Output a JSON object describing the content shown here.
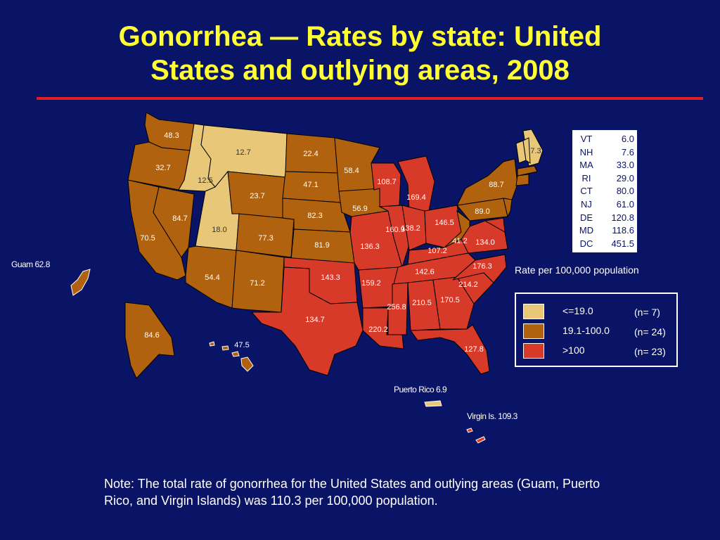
{
  "title": {
    "line1": "Gonorrhea — Rates by state: United",
    "line2": "States and outlying areas, 2008"
  },
  "colors": {
    "background": "#0a1466",
    "title": "#ffff33",
    "rule": "#e01c24",
    "low": "#e8c878",
    "mid": "#b0620e",
    "high": "#d83a2a",
    "border": "#000000"
  },
  "states": [
    {
      "id": "WA",
      "rate": "48.3",
      "category": "mid"
    },
    {
      "id": "OR",
      "rate": "32.7",
      "category": "mid"
    },
    {
      "id": "CA",
      "rate": "70.5",
      "category": "mid"
    },
    {
      "id": "NV",
      "rate": "84.7",
      "category": "mid"
    },
    {
      "id": "ID",
      "rate": "12.5",
      "category": "low"
    },
    {
      "id": "MT",
      "rate": "12.7",
      "category": "low"
    },
    {
      "id": "WY",
      "rate": "23.7",
      "category": "mid"
    },
    {
      "id": "UT",
      "rate": "18.0",
      "category": "low"
    },
    {
      "id": "CO",
      "rate": "77.3",
      "category": "mid"
    },
    {
      "id": "AZ",
      "rate": "54.4",
      "category": "mid"
    },
    {
      "id": "NM",
      "rate": "71.2",
      "category": "mid"
    },
    {
      "id": "ND",
      "rate": "22.4",
      "category": "mid"
    },
    {
      "id": "SD",
      "rate": "47.1",
      "category": "mid"
    },
    {
      "id": "NE",
      "rate": "82.3",
      "category": "mid"
    },
    {
      "id": "KS",
      "rate": "81.9",
      "category": "mid"
    },
    {
      "id": "OK",
      "rate": "143.3",
      "category": "high"
    },
    {
      "id": "TX",
      "rate": "134.7",
      "category": "high"
    },
    {
      "id": "MN",
      "rate": "58.4",
      "category": "mid"
    },
    {
      "id": "IA",
      "rate": "56.9",
      "category": "mid"
    },
    {
      "id": "MO",
      "rate": "136.3",
      "category": "high"
    },
    {
      "id": "AR",
      "rate": "159.2",
      "category": "high"
    },
    {
      "id": "LA",
      "rate": "220.2",
      "category": "high"
    },
    {
      "id": "WI",
      "rate": "108.7",
      "category": "high"
    },
    {
      "id": "IL",
      "rate": "160.9",
      "category": "high"
    },
    {
      "id": "MI",
      "rate": "169.4",
      "category": "high"
    },
    {
      "id": "IN",
      "rate": "138.2",
      "category": "high"
    },
    {
      "id": "OH",
      "rate": "146.5",
      "category": "high"
    },
    {
      "id": "KY",
      "rate": "107.2",
      "category": "high"
    },
    {
      "id": "TN",
      "rate": "142.6",
      "category": "high"
    },
    {
      "id": "MS",
      "rate": "256.8",
      "category": "high"
    },
    {
      "id": "AL",
      "rate": "210.5",
      "category": "high"
    },
    {
      "id": "GA",
      "rate": "170.5",
      "category": "high"
    },
    {
      "id": "FL",
      "rate": "127.8",
      "category": "high"
    },
    {
      "id": "SC",
      "rate": "214.2",
      "category": "high"
    },
    {
      "id": "NC",
      "rate": "176.3",
      "category": "high"
    },
    {
      "id": "VA",
      "rate": "134.0",
      "category": "high"
    },
    {
      "id": "WV",
      "rate": "41.2",
      "category": "mid"
    },
    {
      "id": "PA",
      "rate": "89.0",
      "category": "mid"
    },
    {
      "id": "NY",
      "rate": "88.7",
      "category": "mid"
    },
    {
      "id": "ME",
      "rate": "7.3",
      "category": "low"
    },
    {
      "id": "AK",
      "rate": "84.6",
      "category": "mid"
    },
    {
      "id": "HI",
      "rate": "47.5",
      "category": "mid"
    }
  ],
  "small_states": [
    {
      "abbr": "VT",
      "rate": "6.0"
    },
    {
      "abbr": "NH",
      "rate": "7.6"
    },
    {
      "abbr": "MA",
      "rate": "33.0"
    },
    {
      "abbr": "RI",
      "rate": "29.0"
    },
    {
      "abbr": "CT",
      "rate": "80.0"
    },
    {
      "abbr": "NJ",
      "rate": "61.0"
    },
    {
      "abbr": "DE",
      "rate": "120.8"
    },
    {
      "abbr": "MD",
      "rate": "118.6"
    },
    {
      "abbr": "DC",
      "rate": "451.5"
    }
  ],
  "outlying": {
    "guam": "Guam 62.8",
    "puerto_rico": "Puerto Rico 6.9",
    "virgin_islands": "Virgin Is. 109.3"
  },
  "legend": {
    "caption": "Rate per 100,000 population",
    "items": [
      {
        "label": "<=19.0",
        "count": "(n= 7)",
        "category": "low"
      },
      {
        "label": "19.1-100.0",
        "count": "(n= 24)",
        "category": "mid"
      },
      {
        "label": ">100",
        "count": "(n= 23)",
        "category": "high"
      }
    ]
  },
  "note": "Note: The total rate of gonorrhea for the United States and outlying areas (Guam, Puerto Rico, and Virgin Islands) was 110.3 per 100,000 population."
}
